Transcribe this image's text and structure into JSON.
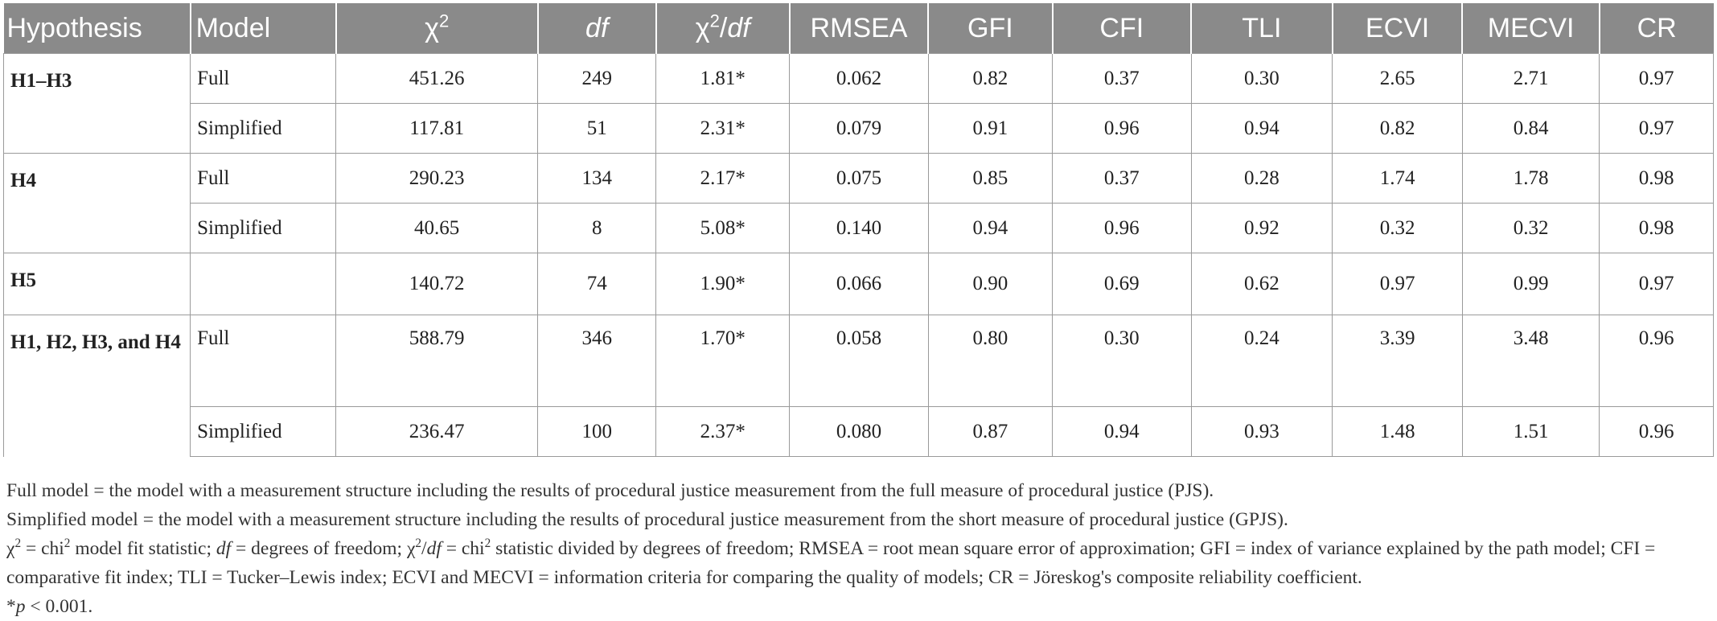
{
  "table": {
    "headers": [
      {
        "text": "Hypothesis",
        "sup": "",
        "italic": false
      },
      {
        "text": "Model",
        "sup": "",
        "italic": false
      },
      {
        "text": "χ",
        "sup": "2",
        "italic": false
      },
      {
        "text": "df",
        "sup": "",
        "italic": true
      },
      {
        "text": "χ",
        "sup": "2",
        "suffix": "/df",
        "italic": false
      },
      {
        "text": "RMSEA",
        "sup": "",
        "italic": false
      },
      {
        "text": "GFI",
        "sup": "",
        "italic": false
      },
      {
        "text": "CFI",
        "sup": "",
        "italic": false
      },
      {
        "text": "TLI",
        "sup": "",
        "italic": false
      },
      {
        "text": "ECVI",
        "sup": "",
        "italic": false
      },
      {
        "text": "MECVI",
        "sup": "",
        "italic": false
      },
      {
        "text": "CR",
        "sup": "",
        "italic": false
      }
    ],
    "groups": [
      {
        "hypothesis": "H1–H3",
        "rows": [
          {
            "model": "Full",
            "values": [
              "451.26",
              "249",
              "1.81*",
              "0.062",
              "0.82",
              "0.37",
              "0.30",
              "2.65",
              "2.71",
              "0.97"
            ]
          },
          {
            "model": "Simplified",
            "values": [
              "117.81",
              "51",
              "2.31*",
              "0.079",
              "0.91",
              "0.96",
              "0.94",
              "0.82",
              "0.84",
              "0.97"
            ]
          }
        ]
      },
      {
        "hypothesis": "H4",
        "rows": [
          {
            "model": "Full",
            "values": [
              "290.23",
              "134",
              "2.17*",
              "0.075",
              "0.85",
              "0.37",
              "0.28",
              "1.74",
              "1.78",
              "0.98"
            ]
          },
          {
            "model": "Simplified",
            "values": [
              "40.65",
              "8",
              "5.08*",
              "0.140",
              "0.94",
              "0.96",
              "0.92",
              "0.32",
              "0.32",
              "0.98"
            ]
          }
        ]
      },
      {
        "hypothesis": "H5",
        "rows": [
          {
            "model": "",
            "values": [
              "140.72",
              "74",
              "1.90*",
              "0.066",
              "0.90",
              "0.69",
              "0.62",
              "0.97",
              "0.99",
              "0.97"
            ]
          }
        ]
      },
      {
        "hypothesis": "H1, H2, H3, and H4",
        "rows": [
          {
            "model": "Full",
            "values": [
              "588.79",
              "346",
              "1.70*",
              "0.058",
              "0.80",
              "0.30",
              "0.24",
              "3.39",
              "3.48",
              "0.96"
            ],
            "tall": true
          },
          {
            "model": "Simplified",
            "values": [
              "236.47",
              "100",
              "2.37*",
              "0.080",
              "0.87",
              "0.94",
              "0.93",
              "1.48",
              "1.51",
              "0.96"
            ]
          }
        ]
      }
    ]
  },
  "notes": {
    "full_model": "Full model = the model with a measurement structure including the results of procedural justice measurement from the full measure of procedural justice (PJS).",
    "simplified_model": "Simplified model = the model with a measurement structure including the results of procedural justice measurement from the short measure of procedural justice (GPJS).",
    "abbr": {
      "chi": "χ",
      "sup2": "2",
      "p1": " = chi",
      "p2": " model fit statistic; ",
      "df": "df",
      "p3": " = degrees of freedom; ",
      "p4": "/",
      "p5": " = chi",
      "p6": " statistic divided by degrees of freedom; RMSEA = root mean square error of approximation; GFI = index of variance explained by the path model; CFI = comparative fit index; TLI = Tucker–Lewis index; ECVI and MECVI = information criteria for comparing the quality of models; CR = Jöreskog's composite reliability coefficient."
    },
    "p_note": {
      "star": "*",
      "p": "p",
      "rest": " < 0.001."
    }
  }
}
